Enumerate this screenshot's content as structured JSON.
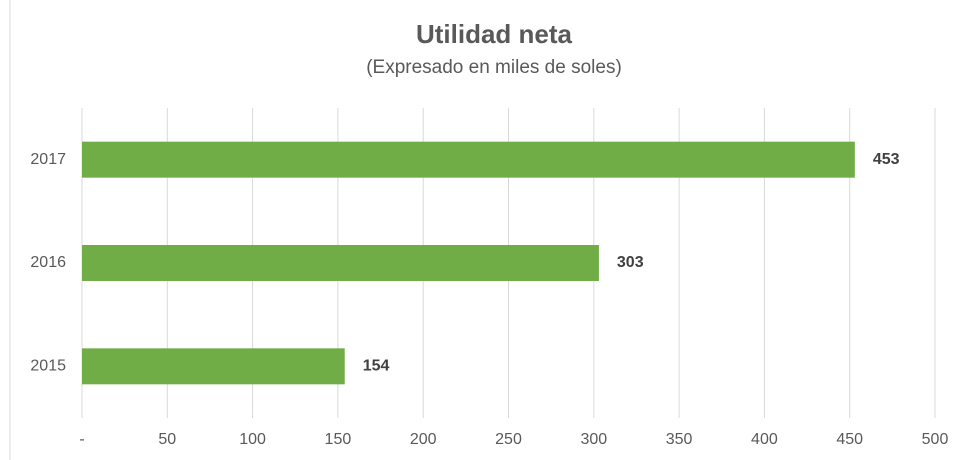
{
  "chart_data": {
    "type": "bar",
    "orientation": "horizontal",
    "title": "Utilidad neta",
    "subtitle": "(Expresado en miles de soles)",
    "categories": [
      "2017",
      "2016",
      "2015"
    ],
    "values": [
      453,
      303,
      154
    ],
    "color": "#70ad47",
    "xlim": [
      0,
      500
    ],
    "xticks": [
      {
        "value": 0,
        "label": "-"
      },
      50,
      100,
      150,
      200,
      250,
      300,
      350,
      400,
      450,
      500
    ],
    "grid": true
  }
}
